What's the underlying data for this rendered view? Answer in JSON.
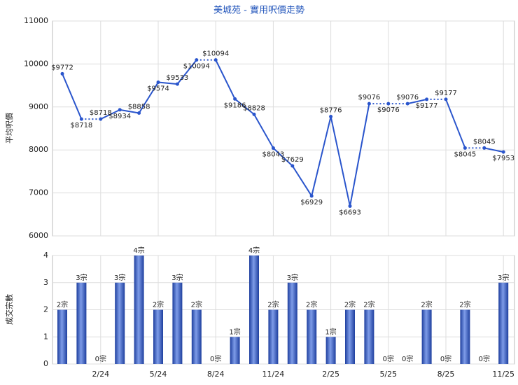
{
  "chart_data": [
    {
      "type": "line",
      "title": "美城苑 - 實用呎價走勢",
      "y_label": "平均呎價",
      "color": "#2a55cc",
      "values": [
        9772,
        8718,
        8718,
        8934,
        8858,
        9574,
        9533,
        10094,
        10094,
        9186,
        8828,
        8043,
        7629,
        6929,
        8776,
        6693,
        9076,
        9076,
        9076,
        9177,
        9177,
        8045,
        8045,
        7953
      ],
      "value_labels": [
        "$9772",
        "$8718",
        "$8718",
        "$8934",
        "$8858",
        "$9574",
        "$9533",
        "$10094",
        "$10094",
        "$9186",
        "$8828",
        "$8043",
        "$7629",
        "$6929",
        "$8776",
        "$6693",
        "$9076",
        "$9076",
        "$9076",
        "$9177",
        "$9177",
        "$8045",
        "$8045",
        "$7953"
      ],
      "ylim": [
        6000,
        11000
      ],
      "yticks": [
        6000,
        7000,
        8000,
        9000,
        10000,
        11000
      ],
      "grid": true
    },
    {
      "type": "bar",
      "y_label": "成交宗數",
      "color": "#3a62cc",
      "categories": [
        null,
        null,
        "2/24",
        null,
        null,
        "5/24",
        null,
        null,
        "8/24",
        null,
        null,
        "11/24",
        null,
        null,
        "2/25",
        null,
        null,
        "5/25",
        null,
        null,
        "8/25",
        null,
        null,
        "11/25"
      ],
      "values": [
        2,
        3,
        0,
        3,
        4,
        2,
        3,
        2,
        0,
        1,
        4,
        2,
        3,
        2,
        1,
        2,
        2,
        0,
        0,
        2,
        0,
        2,
        0,
        3
      ],
      "value_labels": [
        "2宗",
        "3宗",
        "0宗",
        "3宗",
        "4宗",
        "2宗",
        "3宗",
        "2宗",
        "0宗",
        "1宗",
        "4宗",
        "2宗",
        "3宗",
        "2宗",
        "1宗",
        "2宗",
        "2宗",
        "0宗",
        "0宗",
        "2宗",
        "0宗",
        "2宗",
        "0宗",
        "3宗"
      ],
      "ylim": [
        0,
        4
      ],
      "yticks": [
        0,
        1,
        2,
        3,
        4
      ],
      "grid": true
    }
  ]
}
